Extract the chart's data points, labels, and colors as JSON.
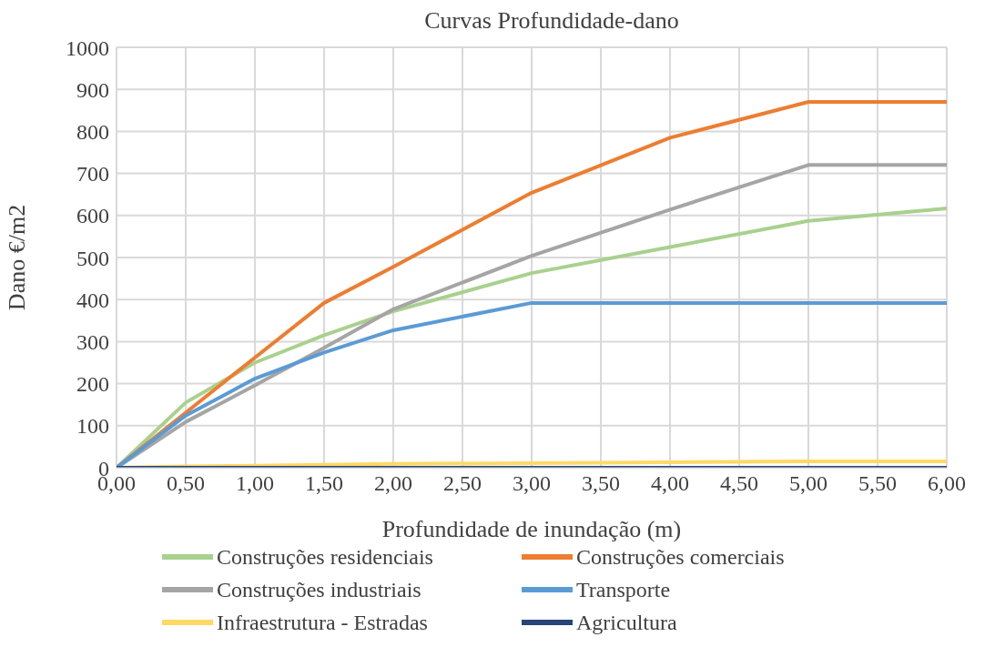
{
  "chart_data": {
    "type": "line",
    "title": "Curvas Profundidade-dano",
    "xlabel": "Profundidade de inundação (m)",
    "ylabel": "Dano €/m2",
    "x": [
      0,
      0.5,
      1,
      1.5,
      2,
      3,
      4,
      5,
      6
    ],
    "series": [
      {
        "name": "Construções residenciais",
        "color": "#a9d18e",
        "values": [
          0,
          155,
          250,
          315,
          372,
          463,
          525,
          587,
          617
        ]
      },
      {
        "name": "Construções comerciais",
        "color": "#ed7d31",
        "values": [
          0,
          131,
          262,
          392,
          478,
          654,
          785,
          870,
          870
        ]
      },
      {
        "name": "Construções industriais",
        "color": "#a5a5a5",
        "values": [
          0,
          109,
          196,
          285,
          377,
          504,
          614,
          720,
          720
        ]
      },
      {
        "name": "Transporte",
        "color": "#5b9bd5",
        "values": [
          0,
          124,
          212,
          274,
          327,
          392,
          392,
          392,
          392
        ]
      },
      {
        "name": "Infraestrutura - Estradas",
        "color": "#ffd966",
        "values": [
          0,
          3,
          5,
          7,
          9,
          11,
          13,
          15,
          15
        ]
      },
      {
        "name": "Agricultura",
        "color": "#264478",
        "values": [
          0,
          0,
          0,
          0,
          0,
          0,
          0,
          0,
          0
        ]
      }
    ],
    "xlim": [
      0,
      6
    ],
    "xticks": [
      {
        "value": 0,
        "label": "0,00"
      },
      {
        "value": 0.5,
        "label": "0,50"
      },
      {
        "value": 1,
        "label": "1,00"
      },
      {
        "value": 1.5,
        "label": "1,50"
      },
      {
        "value": 2,
        "label": "2,00"
      },
      {
        "value": 2.5,
        "label": "2,50"
      },
      {
        "value": 3,
        "label": "3,00"
      },
      {
        "value": 3.5,
        "label": "3,50"
      },
      {
        "value": 4,
        "label": "4,00"
      },
      {
        "value": 4.5,
        "label": "4,50"
      },
      {
        "value": 5,
        "label": "5,00"
      },
      {
        "value": 5.5,
        "label": "5,50"
      },
      {
        "value": 6,
        "label": "6,00"
      }
    ],
    "ylim": [
      0,
      1000
    ],
    "yticks": [
      0,
      100,
      200,
      300,
      400,
      500,
      600,
      700,
      800,
      900,
      1000
    ],
    "grid": true,
    "legend": "bottom",
    "marker": "none",
    "line_style": "solid"
  }
}
